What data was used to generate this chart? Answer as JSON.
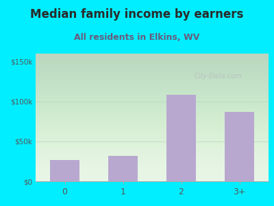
{
  "title": "Median family income by earners",
  "subtitle": "All residents in Elkins, WV",
  "categories": [
    "0",
    "1",
    "2",
    "3+"
  ],
  "values": [
    27000,
    32000,
    108000,
    87000
  ],
  "bar_color": "#b8a8d0",
  "ylim": [
    0,
    160000
  ],
  "yticks": [
    0,
    50000,
    100000,
    150000
  ],
  "ytick_labels": [
    "$0",
    "$50k",
    "$100k",
    "$150k"
  ],
  "background_outer": "#00eeff",
  "background_inner": "#e6f5e4",
  "title_color": "#2a2a2a",
  "subtitle_color": "#6a5a7a",
  "tick_color": "#555555",
  "title_fontsize": 12,
  "subtitle_fontsize": 9,
  "watermark": "City-Data.com"
}
